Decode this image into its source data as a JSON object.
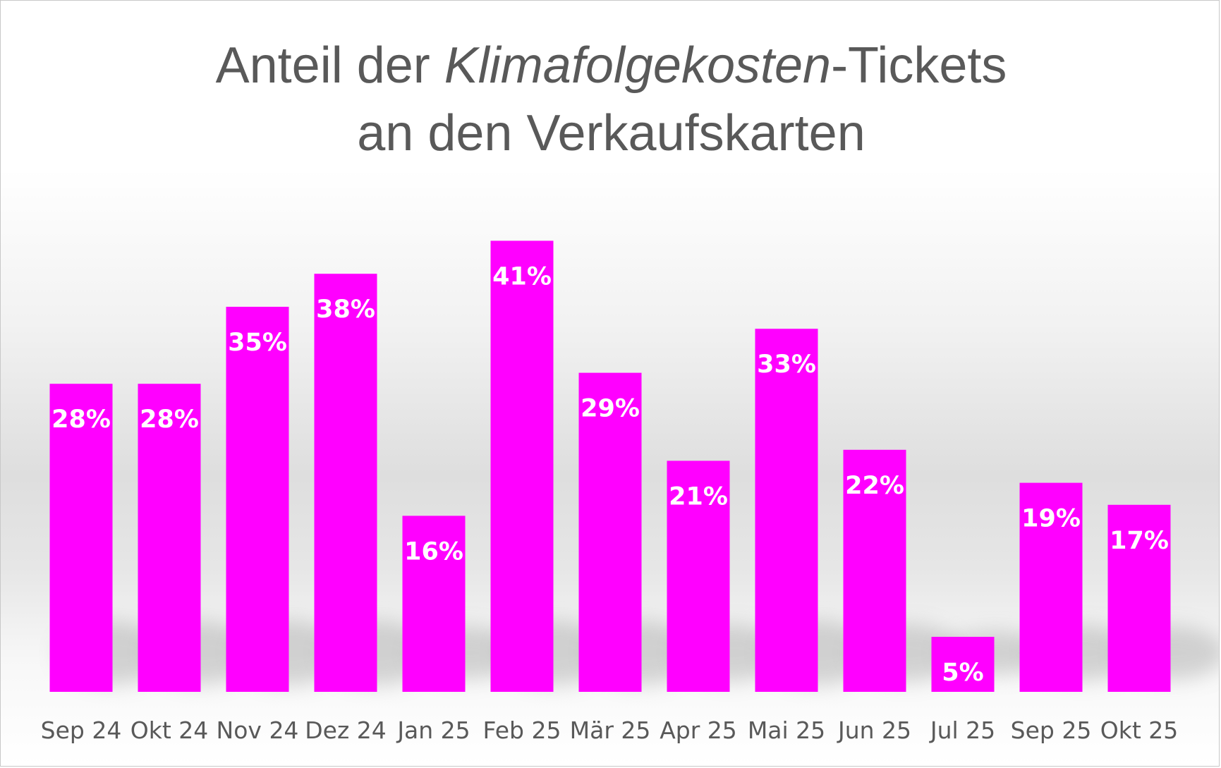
{
  "chart_data": {
    "type": "bar",
    "title_line1_prefix": "Anteil der ",
    "title_line1_italic": "Klimafolgekosten",
    "title_line1_suffix": "-Tickets",
    "title_line2": "an den Verkaufskarten",
    "categories": [
      "Sep 24",
      "Okt 24",
      "Nov 24",
      "Dez 24",
      "Jan 25",
      "Feb 25",
      "Mär 25",
      "Apr 25",
      "Mai 25",
      "Jun 25",
      "Jul 25",
      "Sep 25",
      "Okt 25"
    ],
    "values": [
      28,
      28,
      35,
      38,
      16,
      41,
      29,
      21,
      33,
      22,
      5,
      19,
      17
    ],
    "data_labels": [
      "28%",
      "28%",
      "35%",
      "38%",
      "16%",
      "41%",
      "29%",
      "21%",
      "33%",
      "22%",
      "5%",
      "19%",
      "17%"
    ],
    "xlabel": "",
    "ylabel": "",
    "ylim": [
      0,
      45
    ],
    "grid": false,
    "legend": "none",
    "bar_color": "#ff00ff",
    "label_color": "#ffffff"
  }
}
